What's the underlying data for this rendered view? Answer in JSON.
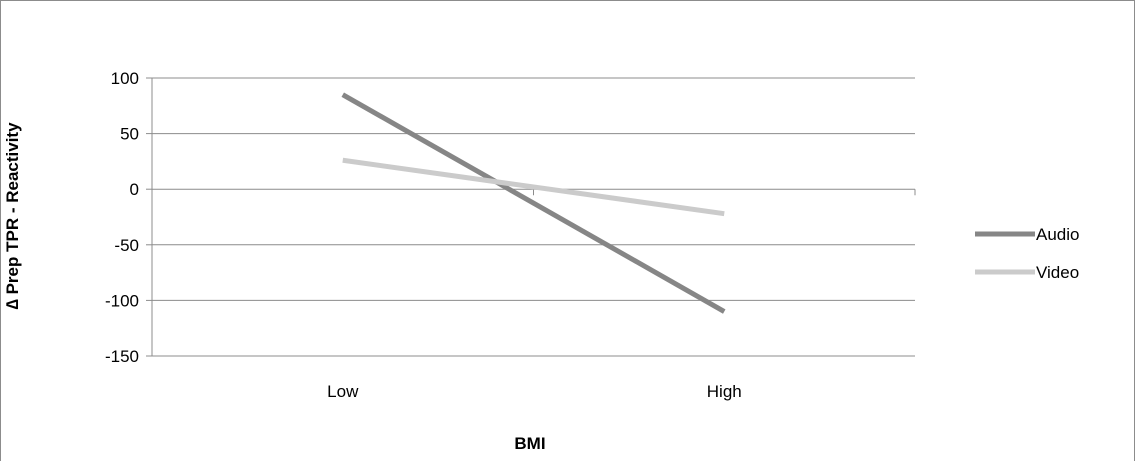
{
  "chart_data": {
    "type": "line",
    "categories": [
      "Low",
      "High"
    ],
    "series": [
      {
        "name": "Audio",
        "values": [
          85,
          -110
        ],
        "color": "#868686"
      },
      {
        "name": "Video",
        "values": [
          26,
          -22
        ],
        "color": "#cbcbcb"
      }
    ],
    "xlabel": "BMI",
    "ylabel": "∆ Prep TPR - Reactivity",
    "ylim": [
      -150,
      100
    ],
    "yticks": [
      100,
      50,
      0,
      -50,
      -100,
      -150
    ],
    "grid": true,
    "legend_position": "right"
  }
}
